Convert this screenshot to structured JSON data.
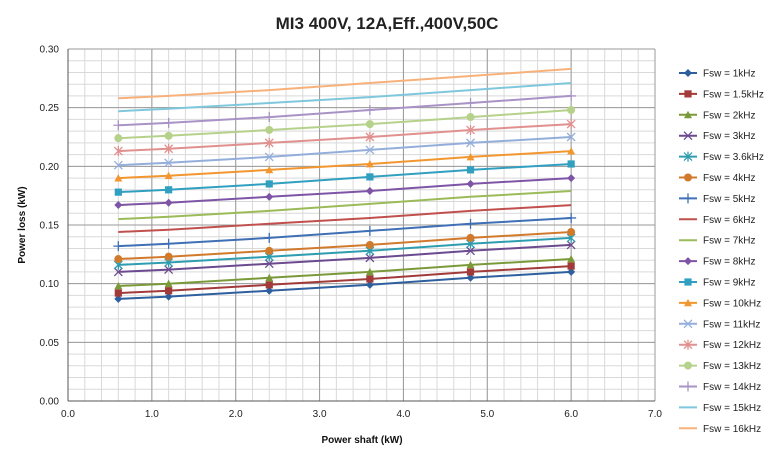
{
  "chart_data": {
    "type": "line",
    "title": "MI3 400V, 12A,Eff.,400V,50C",
    "xlabel": "Power shaft (kW)",
    "ylabel": "Power loss (kW)",
    "xlim": [
      0.0,
      7.0
    ],
    "ylim": [
      0.0,
      0.3
    ],
    "xticks": [
      "0.0",
      "1.0",
      "2.0",
      "3.0",
      "4.0",
      "5.0",
      "6.0",
      "7.0"
    ],
    "yticks": [
      "0.00",
      "0.05",
      "0.10",
      "0.15",
      "0.20",
      "0.25",
      "0.30"
    ],
    "grid": true,
    "legend_position": "right",
    "x": [
      0.6,
      1.2,
      2.4,
      3.6,
      4.8,
      6.0
    ],
    "series": [
      {
        "name": "Fsw = 1kHz",
        "color": "#2e5f9e",
        "marker": "diamond",
        "values": [
          0.087,
          0.089,
          0.094,
          0.099,
          0.105,
          0.11
        ]
      },
      {
        "name": "Fsw = 1.5kHz",
        "color": "#a33a3a",
        "marker": "square",
        "values": [
          0.092,
          0.094,
          0.099,
          0.104,
          0.11,
          0.115
        ]
      },
      {
        "name": "Fsw = 2kHz",
        "color": "#7a9a3a",
        "marker": "triangle",
        "values": [
          0.098,
          0.1,
          0.105,
          0.11,
          0.116,
          0.121
        ]
      },
      {
        "name": "Fsw = 3kHz",
        "color": "#6b4a8f",
        "marker": "x",
        "values": [
          0.11,
          0.112,
          0.117,
          0.122,
          0.128,
          0.133
        ]
      },
      {
        "name": "Fsw = 3.6kHz",
        "color": "#2f9db0",
        "marker": "star",
        "values": [
          0.116,
          0.118,
          0.123,
          0.128,
          0.134,
          0.139
        ]
      },
      {
        "name": "Fsw = 4kHz",
        "color": "#d27a2c",
        "marker": "circle",
        "values": [
          0.121,
          0.123,
          0.128,
          0.133,
          0.139,
          0.144
        ]
      },
      {
        "name": "Fsw = 5kHz",
        "color": "#3f6fb5",
        "marker": "plus",
        "values": [
          0.132,
          0.134,
          0.139,
          0.145,
          0.151,
          0.156
        ]
      },
      {
        "name": "Fsw = 6kHz",
        "color": "#c0504d",
        "marker": "none",
        "values": [
          0.144,
          0.146,
          0.151,
          0.156,
          0.162,
          0.167
        ]
      },
      {
        "name": "Fsw = 7kHz",
        "color": "#9bbb59",
        "marker": "none",
        "values": [
          0.155,
          0.157,
          0.162,
          0.168,
          0.174,
          0.179
        ]
      },
      {
        "name": "Fsw = 8kHz",
        "color": "#7e55a6",
        "marker": "diamond",
        "values": [
          0.167,
          0.169,
          0.174,
          0.179,
          0.185,
          0.19
        ]
      },
      {
        "name": "Fsw = 9kHz",
        "color": "#31a0c0",
        "marker": "square",
        "values": [
          0.178,
          0.18,
          0.185,
          0.191,
          0.197,
          0.202
        ]
      },
      {
        "name": "Fsw = 10kHz",
        "color": "#f2962f",
        "marker": "triangle",
        "values": [
          0.19,
          0.192,
          0.197,
          0.202,
          0.208,
          0.213
        ]
      },
      {
        "name": "Fsw = 11kHz",
        "color": "#94aedb",
        "marker": "x",
        "values": [
          0.201,
          0.203,
          0.208,
          0.214,
          0.22,
          0.225
        ]
      },
      {
        "name": "Fsw = 12kHz",
        "color": "#e0908e",
        "marker": "star",
        "values": [
          0.213,
          0.215,
          0.22,
          0.225,
          0.231,
          0.236
        ]
      },
      {
        "name": "Fsw = 13kHz",
        "color": "#b5d18a",
        "marker": "circle",
        "values": [
          0.224,
          0.226,
          0.231,
          0.236,
          0.242,
          0.248
        ]
      },
      {
        "name": "Fsw = 14kHz",
        "color": "#a993c6",
        "marker": "plus",
        "values": [
          0.235,
          0.237,
          0.242,
          0.248,
          0.254,
          0.26
        ]
      },
      {
        "name": "Fsw = 15kHz",
        "color": "#7fc7dc",
        "marker": "none",
        "values": [
          0.247,
          0.249,
          0.254,
          0.259,
          0.265,
          0.271
        ]
      },
      {
        "name": "Fsw = 16kHz",
        "color": "#f7b17b",
        "marker": "none",
        "values": [
          0.258,
          0.26,
          0.265,
          0.271,
          0.277,
          0.283
        ]
      }
    ]
  }
}
